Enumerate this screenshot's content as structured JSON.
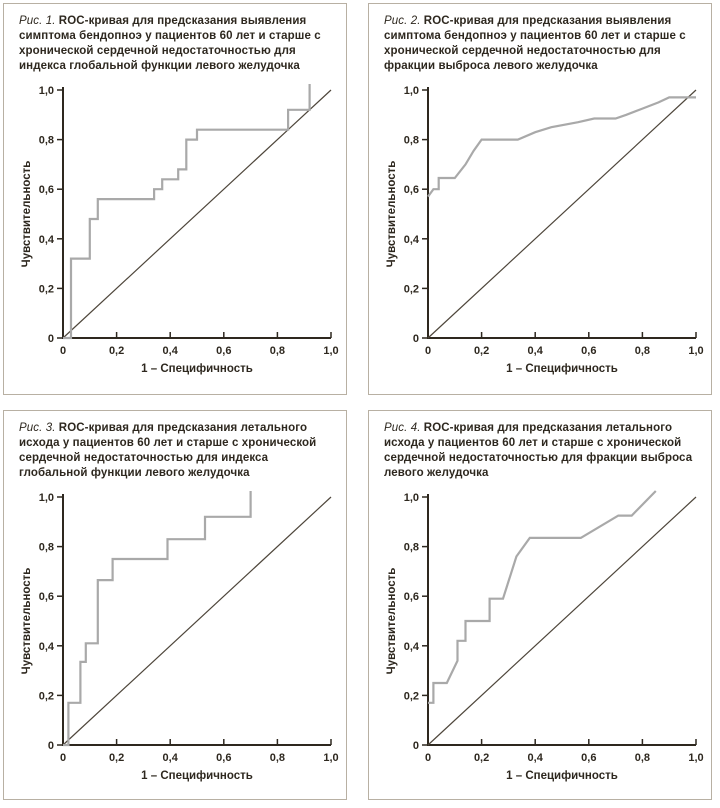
{
  "colors": {
    "curve": "#a9a9a9",
    "reference": "#4e463b",
    "axis": "#2e281f",
    "text": "#2e281f",
    "panel_border": "#b8b0a3"
  },
  "axes": {
    "tick_values": [
      0,
      0.2,
      0.4,
      0.6,
      0.8,
      1
    ],
    "tick_labels": [
      "0",
      "0,2",
      "0,4",
      "0,6",
      "0,8",
      "1,0"
    ],
    "xlim": [
      0,
      1
    ],
    "ylim": [
      0,
      1
    ]
  },
  "chart_data": [
    {
      "type": "line",
      "caption_prefix": "Рис. 1.",
      "caption": "ROC-кривая для предсказания выявления симптома бендопноэ у пациентов 60 лет и старше с хронической сердечной недостаточностью для индекса глобальной функции левого желудочка",
      "xlabel": "1 – Специфичность",
      "ylabel": "Чувствительность",
      "xlim": [
        0,
        1
      ],
      "ylim": [
        0,
        1
      ],
      "end_overshoot": true,
      "series": [
        {
          "name": "ROC-кривая",
          "color_key": "curve",
          "points": [
            [
              0,
              0
            ],
            [
              0.03,
              0
            ],
            [
              0.03,
              0.32
            ],
            [
              0.1,
              0.32
            ],
            [
              0.1,
              0.48
            ],
            [
              0.13,
              0.48
            ],
            [
              0.13,
              0.56
            ],
            [
              0.34,
              0.56
            ],
            [
              0.34,
              0.6
            ],
            [
              0.37,
              0.6
            ],
            [
              0.37,
              0.64
            ],
            [
              0.43,
              0.64
            ],
            [
              0.43,
              0.68
            ],
            [
              0.46,
              0.68
            ],
            [
              0.46,
              0.8
            ],
            [
              0.5,
              0.8
            ],
            [
              0.5,
              0.84
            ],
            [
              0.84,
              0.84
            ],
            [
              0.84,
              0.92
            ],
            [
              0.92,
              0.92
            ],
            [
              0.92,
              1.0
            ]
          ]
        },
        {
          "name": "Линия сравнения",
          "color_key": "reference",
          "points": [
            [
              0,
              0
            ],
            [
              1,
              1
            ]
          ]
        }
      ]
    },
    {
      "type": "line",
      "caption_prefix": "Рис. 2.",
      "caption": "ROC-кривая для предсказания выявления симптома бендопноэ у пациентов 60 лет и старше с хронической сердечной недостаточностью для фракции выброса левого желудочка",
      "xlabel": "1 – Специфичность",
      "ylabel": "Чувствительность",
      "xlim": [
        0,
        1
      ],
      "ylim": [
        0,
        1
      ],
      "end_overshoot": false,
      "series": [
        {
          "name": "ROC-кривая",
          "color_key": "curve",
          "points": [
            [
              0,
              0.57
            ],
            [
              0.02,
              0.6
            ],
            [
              0.04,
              0.6
            ],
            [
              0.04,
              0.645
            ],
            [
              0.1,
              0.645
            ],
            [
              0.14,
              0.7
            ],
            [
              0.17,
              0.755
            ],
            [
              0.2,
              0.8
            ],
            [
              0.335,
              0.8
            ],
            [
              0.4,
              0.83
            ],
            [
              0.46,
              0.85
            ],
            [
              0.56,
              0.87
            ],
            [
              0.62,
              0.885
            ],
            [
              0.7,
              0.885
            ],
            [
              0.74,
              0.9
            ],
            [
              0.8,
              0.925
            ],
            [
              0.86,
              0.95
            ],
            [
              0.9,
              0.97
            ],
            [
              1.0,
              0.97
            ]
          ]
        },
        {
          "name": "Линия сравнения",
          "color_key": "reference",
          "points": [
            [
              0,
              0
            ],
            [
              1,
              1
            ]
          ]
        }
      ]
    },
    {
      "type": "line",
      "caption_prefix": "Рис. 3.",
      "caption": "ROC-кривая для предсказания летального исхода у пациентов 60 лет и старше с хронической сердечной недостаточностью для индекса глобальной функции левого желудочка",
      "xlabel": "1 – Специфичность",
      "ylabel": "Чувствительность",
      "xlim": [
        0,
        1
      ],
      "ylim": [
        0,
        1
      ],
      "end_overshoot": true,
      "series": [
        {
          "name": "ROC-кривая",
          "color_key": "curve",
          "points": [
            [
              0,
              0
            ],
            [
              0.02,
              0
            ],
            [
              0.02,
              0.17
            ],
            [
              0.065,
              0.17
            ],
            [
              0.065,
              0.335
            ],
            [
              0.085,
              0.335
            ],
            [
              0.085,
              0.41
            ],
            [
              0.13,
              0.41
            ],
            [
              0.13,
              0.665
            ],
            [
              0.185,
              0.665
            ],
            [
              0.185,
              0.75
            ],
            [
              0.39,
              0.75
            ],
            [
              0.39,
              0.83
            ],
            [
              0.53,
              0.83
            ],
            [
              0.53,
              0.92
            ],
            [
              0.7,
              0.92
            ],
            [
              0.7,
              1.0
            ]
          ]
        },
        {
          "name": "Линия сравнения",
          "color_key": "reference",
          "points": [
            [
              0,
              0
            ],
            [
              1,
              1
            ]
          ]
        }
      ]
    },
    {
      "type": "line",
      "caption_prefix": "Рис. 4.",
      "caption": "ROC-кривая для предсказания летального исхода у пациентов 60 лет и старше с хронической сердечной недостаточностью для фракции выброса левого желудочка",
      "xlabel": "1 – Специфичность",
      "ylabel": "Чувствительность",
      "xlim": [
        0,
        1
      ],
      "ylim": [
        0,
        1
      ],
      "end_overshoot": true,
      "series": [
        {
          "name": "ROC-кривая",
          "color_key": "curve",
          "points": [
            [
              0,
              0.17
            ],
            [
              0.02,
              0.17
            ],
            [
              0.02,
              0.25
            ],
            [
              0.07,
              0.25
            ],
            [
              0.11,
              0.34
            ],
            [
              0.11,
              0.42
            ],
            [
              0.14,
              0.42
            ],
            [
              0.14,
              0.5
            ],
            [
              0.23,
              0.5
            ],
            [
              0.23,
              0.59
            ],
            [
              0.28,
              0.59
            ],
            [
              0.33,
              0.76
            ],
            [
              0.38,
              0.835
            ],
            [
              0.57,
              0.835
            ],
            [
              0.71,
              0.925
            ],
            [
              0.76,
              0.925
            ],
            [
              0.85,
              1.0
            ]
          ]
        },
        {
          "name": "Линия сравнения",
          "color_key": "reference",
          "points": [
            [
              0,
              0
            ],
            [
              1,
              1
            ]
          ]
        }
      ]
    }
  ]
}
